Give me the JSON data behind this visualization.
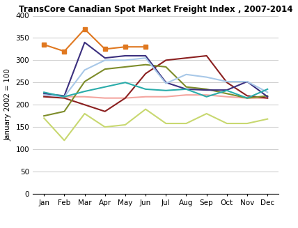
{
  "title": "TransCore Canadian Spot Market Freight Index , 2007-2014",
  "ylabel": "January 2002 = 100",
  "months": [
    "Jan",
    "Feb",
    "Mar",
    "Apr",
    "May",
    "Jun",
    "Jul",
    "Aug",
    "Sep",
    "Oct",
    "Nov",
    "Dec"
  ],
  "series": {
    "2007": [
      220,
      218,
      218,
      215,
      215,
      218,
      218,
      222,
      222,
      218,
      215,
      215
    ],
    "2008": [
      218,
      215,
      200,
      185,
      215,
      270,
      300,
      305,
      310,
      250,
      220,
      215
    ],
    "2009": [
      170,
      120,
      180,
      150,
      155,
      190,
      158,
      158,
      180,
      158,
      158,
      168
    ],
    "2010": [
      175,
      185,
      252,
      280,
      285,
      290,
      285,
      240,
      235,
      225,
      215,
      220
    ],
    "2011": [
      225,
      220,
      340,
      305,
      310,
      310,
      250,
      235,
      233,
      233,
      252,
      218
    ],
    "2012": [
      222,
      218,
      278,
      300,
      300,
      305,
      248,
      268,
      262,
      252,
      252,
      228
    ],
    "2013": [
      228,
      218,
      230,
      240,
      250,
      235,
      232,
      235,
      218,
      232,
      215,
      235
    ],
    "2014": [
      335,
      320,
      370,
      325,
      330,
      330,
      null,
      null,
      null,
      null,
      null,
      null
    ]
  },
  "colors": {
    "2007": "#f4a6a0",
    "2008": "#8b2020",
    "2009": "#c8d870",
    "2010": "#7d8c2a",
    "2011": "#3b2f7e",
    "2012": "#a8c8e8",
    "2013": "#2aacaa",
    "2014": "#e07820"
  },
  "ylim": [
    0,
    400
  ],
  "yticks": [
    0,
    50,
    100,
    150,
    200,
    250,
    300,
    350,
    400
  ],
  "background_color": "#ffffff",
  "grid_color": "#d0d0d0"
}
